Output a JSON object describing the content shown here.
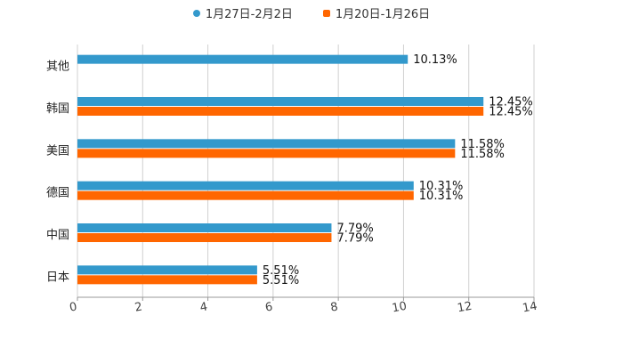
{
  "chart_data": {
    "type": "bar",
    "orientation": "horizontal",
    "title": "",
    "xlabel": "",
    "ylabel": "",
    "xlim": [
      0,
      14
    ],
    "x_ticks": [
      "0",
      "2",
      "4",
      "6",
      "8",
      "10",
      "12",
      "14"
    ],
    "grid": true,
    "legend_position": "top-center",
    "categories": [
      "其他",
      "韩国",
      "美国",
      "德国",
      "中国",
      "日本"
    ],
    "series": [
      {
        "name": "1月27日-2月2日",
        "color": "#3399cc",
        "values": [
          10.13,
          12.45,
          11.58,
          10.31,
          7.79,
          5.51
        ],
        "labels": [
          "10.13%",
          "12.45%",
          "11.58%",
          "10.31%",
          "7.79%",
          "5.51%"
        ]
      },
      {
        "name": "1月20日-1月26日",
        "color": "#ff6600",
        "values": [
          null,
          12.45,
          11.58,
          10.31,
          7.79,
          5.51
        ],
        "labels": [
          "",
          "12.45%",
          "11.58%",
          "10.31%",
          "7.79%",
          "5.51%"
        ]
      }
    ]
  }
}
